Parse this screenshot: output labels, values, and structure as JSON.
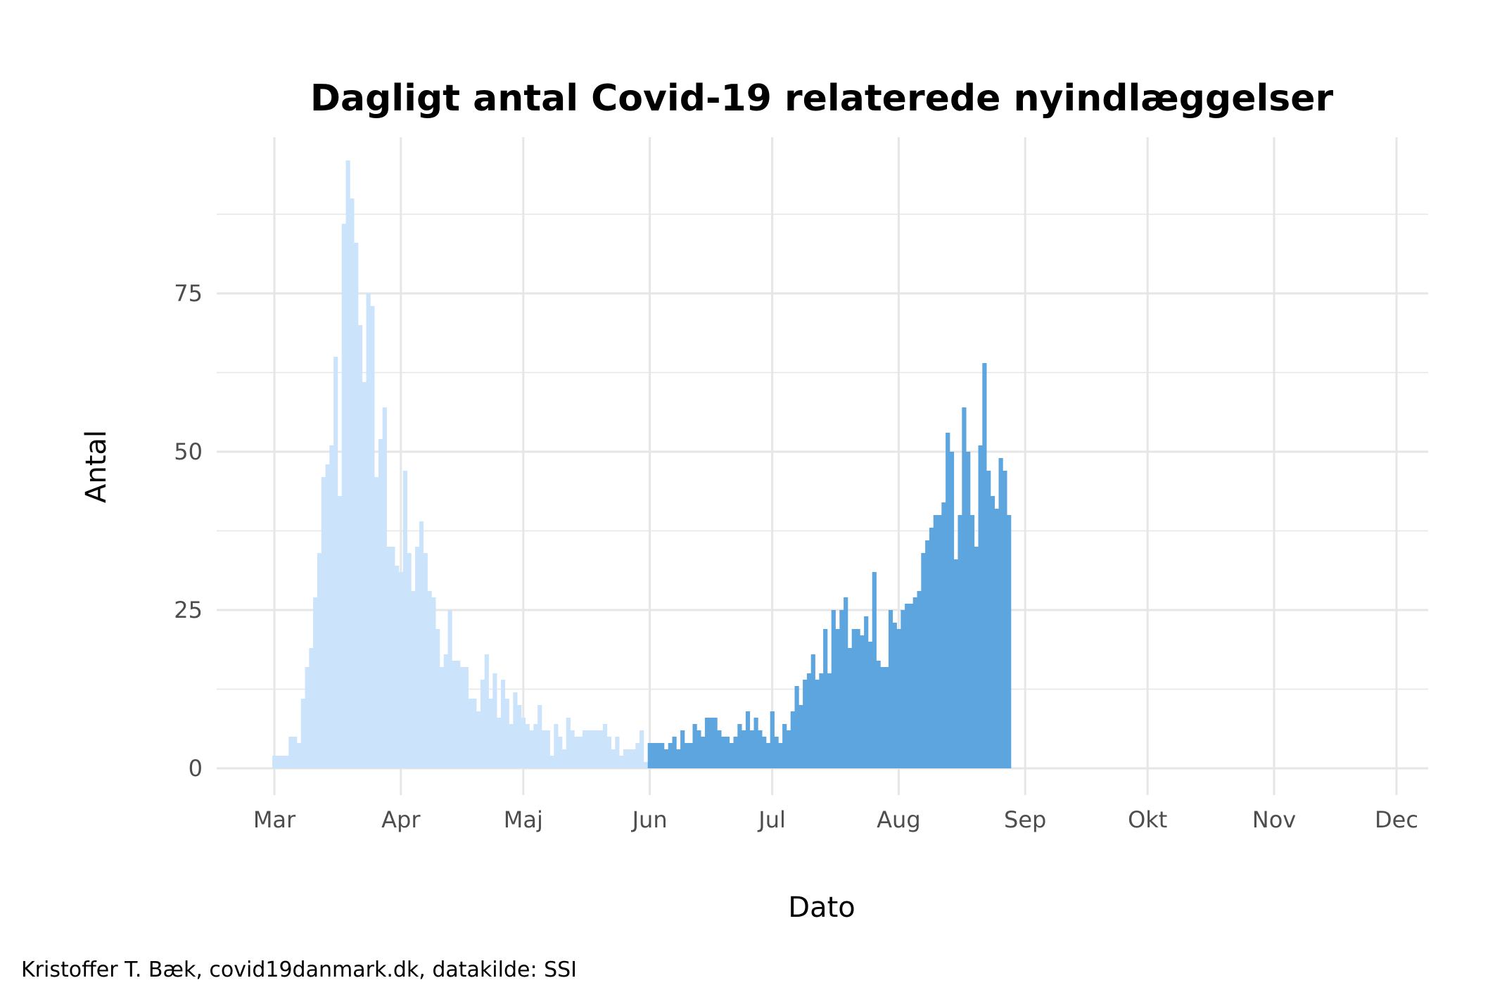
{
  "chart_data": {
    "type": "bar",
    "title": "Dagligt antal Covid-19 relaterede nyindlæggelser",
    "xlabel": "Dato",
    "ylabel": "Antal",
    "caption": "Kristoffer T. Bæk, covid19danmark.dk, datakilde: SSI",
    "x_start": "2020-03-01",
    "x_ticks": [
      {
        "date": "2020-03-01",
        "label": "Mar"
      },
      {
        "date": "2020-04-01",
        "label": "Apr"
      },
      {
        "date": "2020-05-01",
        "label": "Maj"
      },
      {
        "date": "2020-06-01",
        "label": "Jun"
      },
      {
        "date": "2020-07-01",
        "label": "Jul"
      },
      {
        "date": "2020-08-01",
        "label": "Aug"
      },
      {
        "date": "2020-09-01",
        "label": "Sep"
      },
      {
        "date": "2020-10-01",
        "label": "Okt"
      },
      {
        "date": "2020-11-01",
        "label": "Nov"
      },
      {
        "date": "2020-12-01",
        "label": "Dec"
      }
    ],
    "y_ticks": [
      0,
      25,
      50,
      75
    ],
    "ylim": [
      -1,
      99
    ],
    "grid": true,
    "colors": {
      "light": "#cce4fb",
      "dark": "#5da5de",
      "grid": "#e6e6e6"
    },
    "highlight_range": [
      "2020-06-01",
      "2020-10-23"
    ],
    "values": [
      2,
      2,
      2,
      2,
      5,
      5,
      4,
      11,
      16,
      19,
      27,
      34,
      46,
      48,
      51,
      65,
      43,
      86,
      96,
      90,
      83,
      70,
      61,
      75,
      73,
      46,
      52,
      57,
      35,
      35,
      32,
      31,
      47,
      34,
      28,
      35,
      39,
      34,
      28,
      27,
      22,
      16,
      18,
      25,
      17,
      17,
      16,
      16,
      11,
      11,
      9,
      14,
      18,
      11,
      15,
      8,
      14,
      11,
      7,
      12,
      10,
      8,
      7,
      6,
      7,
      10,
      6,
      6,
      2,
      7,
      5,
      3,
      8,
      6,
      5,
      5,
      6,
      6,
      6,
      6,
      6,
      7,
      5,
      3,
      5,
      2,
      3,
      3,
      3,
      4,
      6,
      1,
      4,
      4,
      4,
      4,
      3,
      4,
      5,
      3,
      6,
      4,
      4,
      7,
      6,
      5,
      8,
      8,
      8,
      6,
      5,
      5,
      4,
      5,
      7,
      6,
      9,
      6,
      8,
      6,
      5,
      4,
      9,
      5,
      4,
      7,
      6,
      9,
      13,
      10,
      14,
      15,
      18,
      14,
      15,
      22,
      15,
      25,
      22,
      25,
      27,
      19,
      22,
      22,
      21,
      24,
      20,
      31,
      17,
      16,
      16,
      25,
      23,
      22,
      25,
      26,
      26,
      27,
      28,
      34,
      36,
      38,
      40,
      40,
      42,
      53,
      50,
      33,
      40,
      57,
      50,
      40,
      35,
      51,
      64,
      47,
      43,
      41,
      49,
      47,
      40
    ]
  }
}
